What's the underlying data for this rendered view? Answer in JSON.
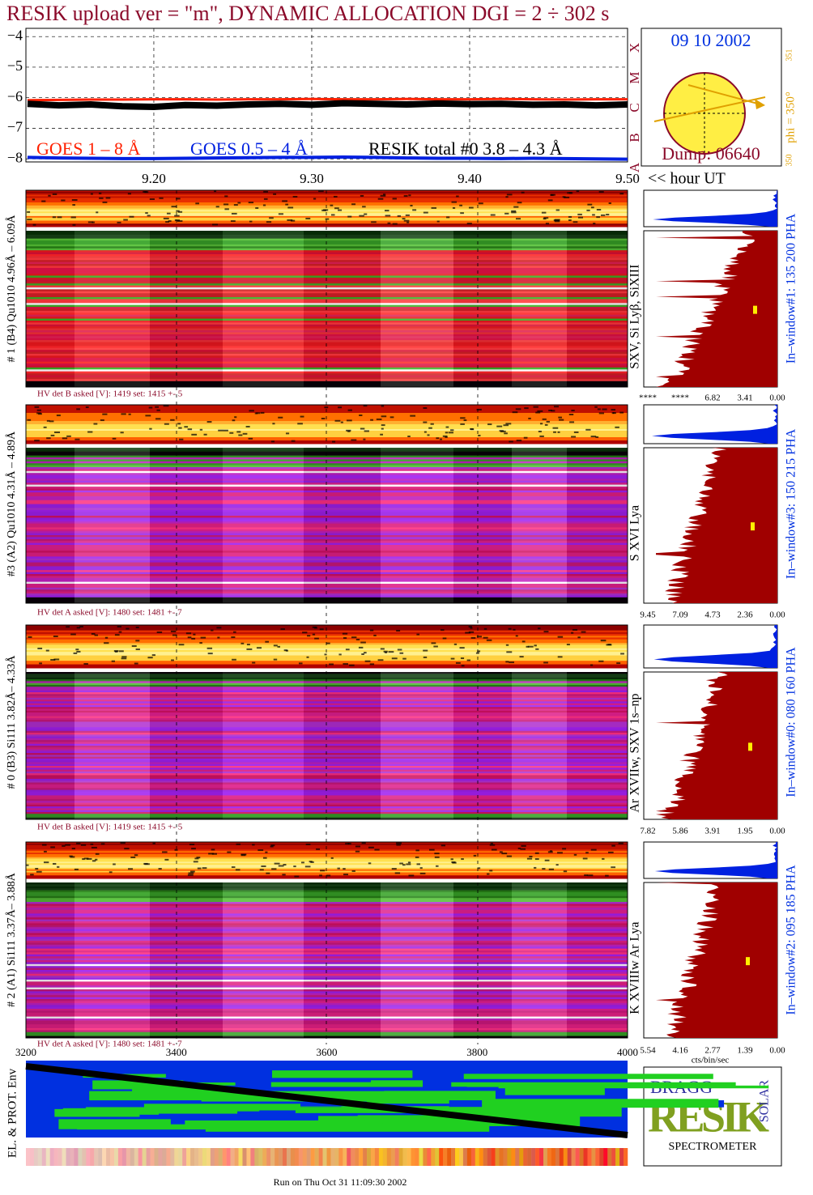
{
  "header": {
    "title": "RESIK upload ver = \"m\", DYNAMIC ALLOCATION  DGI =   2 ÷ 302 s"
  },
  "chart_data": {
    "type": "line",
    "x": [
      9.12,
      9.14,
      9.16,
      9.18,
      9.2,
      9.22,
      9.24,
      9.26,
      9.28,
      9.3,
      9.32,
      9.34,
      9.36,
      9.38,
      9.4,
      9.42,
      9.44,
      9.46,
      9.48,
      9.5
    ],
    "series": [
      {
        "name": "GOES 1 – 8 Å",
        "color": "#ff2000",
        "values": [
          -6.08,
          -6.07,
          -6.06,
          -6.06,
          -6.05,
          -6.05,
          -6.06,
          -6.05,
          -6.05,
          -6.04,
          -6.05,
          -6.05,
          -6.04,
          -6.05,
          -6.05,
          -6.04,
          -6.05,
          -6.06,
          -6.05,
          -6.05
        ]
      },
      {
        "name": "GOES 0.5 – 4 Å",
        "color": "#0020e0",
        "values": [
          -7.95,
          -7.97,
          -7.98,
          -7.99,
          -7.99,
          -7.98,
          -7.97,
          -7.96,
          -7.95,
          -7.95,
          -7.94,
          -7.95,
          -7.97,
          -7.98,
          -7.98,
          -7.99,
          -7.98,
          -7.99,
          -8.0,
          -8.01
        ]
      },
      {
        "name": "RESIK total #0  3.8 – 4.3 Å",
        "color": "#000000",
        "values": [
          -6.2,
          -6.25,
          -6.22,
          -6.28,
          -6.3,
          -6.24,
          -6.26,
          -6.22,
          -6.2,
          -6.23,
          -6.18,
          -6.2,
          -6.22,
          -6.19,
          -6.21,
          -6.2,
          -6.23,
          -6.22,
          -6.25,
          -6.22
        ]
      }
    ],
    "xlim": [
      9.119,
      9.5
    ],
    "ylim": [
      -8.1,
      -3.73
    ],
    "xticks": [
      {
        "value": 9.2,
        "label": "9.20"
      },
      {
        "value": 9.3,
        "label": "9.30"
      },
      {
        "value": 9.4,
        "label": "9.40"
      },
      {
        "value": 9.5,
        "label": "9.50"
      }
    ],
    "yticks": [
      {
        "value": -4,
        "label": "−4"
      },
      {
        "value": -5,
        "label": "−5"
      },
      {
        "value": -6,
        "label": "−6"
      },
      {
        "value": -7,
        "label": "−7"
      },
      {
        "value": -8,
        "label": "−8"
      }
    ],
    "grid": true
  },
  "goes_classes": [
    "A",
    "B",
    "C",
    "M",
    "X"
  ],
  "time_axis_label": "<< hour UT",
  "clock": {
    "date": "09 10 2002",
    "dump": "Dump: 06640",
    "phi": "phi = 350°",
    "phi_sub": "351",
    "phi_min": "350"
  },
  "panels": [
    {
      "label": "# 1 (B4) Qu1010 4.96Å – 6.09Å",
      "hv": "HV det B asked [V]:  1419 set:  1415 +-    5",
      "lines": "SXV, Si Lyβ, SiXIII",
      "window": "In–window#1:  135 200 PHA",
      "hist_axis": [
        "****",
        "****",
        "6.82",
        "3.41",
        "0.00"
      ]
    },
    {
      "label": "#3 (A2) Qu1010  4.31Å – 4.89Å",
      "hv": "HV det A asked [V]:  1480 set:  1481 +-    7",
      "lines": "S XVI Lya",
      "window": "In–window#3:  150 215 PHA",
      "hist_axis": [
        "9.45",
        "7.09",
        "4.73",
        "2.36",
        "0.00"
      ]
    },
    {
      "label": "# 0 (B3) Si111  3.82Å– 4.33Å",
      "hv": "HV det B asked [V]:  1419 set:  1415 +-    5",
      "lines": "Ar XVIIw,  SXV 1s–np",
      "window": "In–window#0:  080 160 PHA",
      "hist_axis": [
        "7.82",
        "5.86",
        "3.91",
        "1.95",
        "0.00"
      ]
    },
    {
      "label": "# 2 (A1) Si111  3.37Å– 3.88Å",
      "hv": "HV det A asked [V]:  1480 set:  1481 +-    7",
      "lines": "K XVIIIw  Ar Lya",
      "window": "In–window#2:  095 185 PHA",
      "hist_axis": [
        "5.54",
        "4.16",
        "2.77",
        "1.39",
        "0.00"
      ]
    }
  ],
  "hist_unit": "cts/bin/sec",
  "env": {
    "label": "EL. & PROT. Env",
    "axis": [
      3200,
      3400,
      3600,
      3800,
      4000
    ]
  },
  "logo": {
    "bragg": "BRAGG",
    "resik": "RESIK",
    "solar": "SOLAR",
    "name": "SPECTROMETER"
  },
  "footer": "Run on Thu Oct 31 11:09:30 2002"
}
